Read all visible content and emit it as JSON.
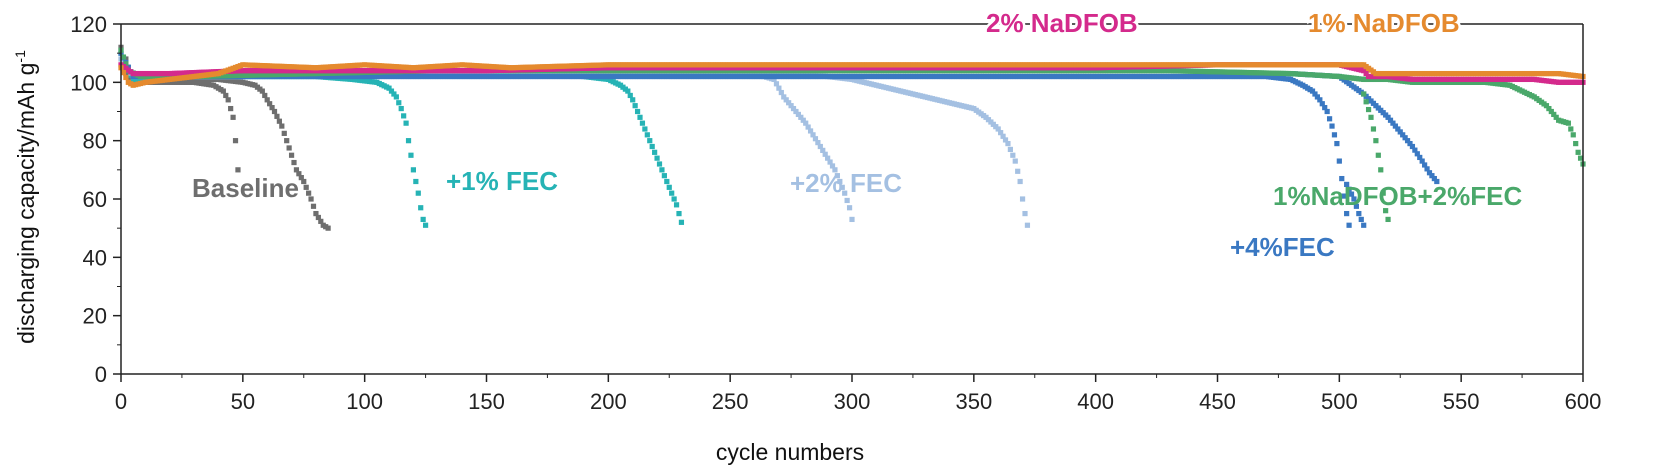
{
  "chart_data": {
    "type": "scatter",
    "title": "",
    "xlabel": "cycle numbers",
    "ylabel_main": "discharging capacity/mAh g",
    "ylabel_sup": "-1",
    "xlim": [
      0,
      600
    ],
    "ylim": [
      0,
      120
    ],
    "xticks": [
      0,
      50,
      100,
      150,
      200,
      250,
      300,
      350,
      400,
      450,
      500,
      550,
      600
    ],
    "yticks": [
      0,
      20,
      40,
      60,
      80,
      100,
      120
    ],
    "grid": false,
    "legend": "inline labels",
    "series": [
      {
        "name": "Baseline",
        "color": "#6e6e6e",
        "points": [
          [
            0,
            112
          ],
          [
            1,
            106
          ],
          [
            2,
            103
          ],
          [
            4,
            101
          ],
          [
            6,
            100
          ],
          [
            10,
            100
          ],
          [
            20,
            100
          ],
          [
            30,
            100
          ],
          [
            38,
            99
          ],
          [
            42,
            97
          ],
          [
            44,
            94
          ],
          [
            46,
            88
          ],
          [
            47,
            80
          ],
          [
            48,
            70
          ],
          [
            2,
            108
          ],
          [
            4,
            102
          ],
          [
            10,
            101
          ],
          [
            20,
            101
          ],
          [
            30,
            101
          ],
          [
            40,
            101
          ],
          [
            50,
            100
          ],
          [
            55,
            99
          ],
          [
            58,
            97
          ],
          [
            60,
            94
          ],
          [
            63,
            90
          ],
          [
            66,
            85
          ],
          [
            68,
            80
          ],
          [
            70,
            75
          ],
          [
            72,
            70
          ],
          [
            75,
            66
          ],
          [
            78,
            60
          ],
          [
            80,
            55
          ],
          [
            83,
            51
          ],
          [
            85,
            50
          ]
        ]
      },
      {
        "name": "+1% FEC",
        "color": "#26b3b5",
        "points": [
          [
            0,
            110
          ],
          [
            3,
            104
          ],
          [
            5,
            101
          ],
          [
            10,
            101
          ],
          [
            20,
            102
          ],
          [
            40,
            102
          ],
          [
            60,
            102
          ],
          [
            80,
            102
          ],
          [
            95,
            101
          ],
          [
            105,
            100
          ],
          [
            110,
            98
          ],
          [
            113,
            95
          ],
          [
            115,
            91
          ],
          [
            117,
            86
          ],
          [
            118,
            80
          ],
          [
            119,
            75
          ],
          [
            120,
            70
          ],
          [
            121,
            66
          ],
          [
            122,
            62
          ],
          [
            123,
            57
          ],
          [
            124,
            53
          ],
          [
            125,
            51
          ],
          [
            5,
            102
          ],
          [
            30,
            102
          ],
          [
            60,
            103
          ],
          [
            100,
            103
          ],
          [
            140,
            103
          ],
          [
            170,
            103
          ],
          [
            190,
            102
          ],
          [
            200,
            101
          ],
          [
            205,
            99
          ],
          [
            208,
            97
          ],
          [
            210,
            94
          ],
          [
            212,
            90
          ],
          [
            214,
            86
          ],
          [
            216,
            82
          ],
          [
            218,
            78
          ],
          [
            220,
            74
          ],
          [
            222,
            70
          ],
          [
            224,
            66
          ],
          [
            226,
            62
          ],
          [
            228,
            58
          ],
          [
            229,
            55
          ],
          [
            230,
            52
          ]
        ]
      },
      {
        "name": "+2% FEC",
        "color": "#a4c0e2",
        "points": [
          [
            0,
            108
          ],
          [
            5,
            102
          ],
          [
            20,
            102
          ],
          [
            50,
            102
          ],
          [
            100,
            103
          ],
          [
            150,
            103
          ],
          [
            200,
            103
          ],
          [
            240,
            103
          ],
          [
            260,
            103
          ],
          [
            268,
            101
          ],
          [
            270,
            98
          ],
          [
            272,
            95
          ],
          [
            275,
            92
          ],
          [
            278,
            89
          ],
          [
            281,
            86
          ],
          [
            284,
            82
          ],
          [
            287,
            78
          ],
          [
            290,
            74
          ],
          [
            293,
            70
          ],
          [
            295,
            66
          ],
          [
            297,
            62
          ],
          [
            299,
            57
          ],
          [
            300,
            53
          ],
          [
            10,
            102
          ],
          [
            50,
            102
          ],
          [
            100,
            103
          ],
          [
            150,
            103
          ],
          [
            200,
            103
          ],
          [
            250,
            103
          ],
          [
            270,
            103
          ],
          [
            290,
            102
          ],
          [
            300,
            101
          ],
          [
            310,
            99
          ],
          [
            320,
            97
          ],
          [
            330,
            95
          ],
          [
            340,
            93
          ],
          [
            350,
            91
          ],
          [
            355,
            88
          ],
          [
            360,
            84
          ],
          [
            364,
            79
          ],
          [
            367,
            73
          ],
          [
            369,
            66
          ],
          [
            370,
            60
          ],
          [
            371,
            55
          ],
          [
            372,
            51
          ]
        ]
      },
      {
        "name": "+4%FEC",
        "color": "#3a78c2",
        "points": [
          [
            0,
            110
          ],
          [
            5,
            102
          ],
          [
            20,
            102
          ],
          [
            50,
            102
          ],
          [
            100,
            102
          ],
          [
            150,
            102
          ],
          [
            200,
            102
          ],
          [
            250,
            102
          ],
          [
            300,
            102
          ],
          [
            350,
            102
          ],
          [
            400,
            102
          ],
          [
            450,
            102
          ],
          [
            470,
            102
          ],
          [
            480,
            101
          ],
          [
            485,
            99
          ],
          [
            489,
            97
          ],
          [
            492,
            94
          ],
          [
            495,
            90
          ],
          [
            497,
            85
          ],
          [
            499,
            79
          ],
          [
            500,
            73
          ],
          [
            501,
            67
          ],
          [
            502,
            61
          ],
          [
            503,
            55
          ],
          [
            504,
            51
          ],
          [
            480,
            103
          ],
          [
            500,
            102
          ],
          [
            505,
            99
          ],
          [
            510,
            96
          ],
          [
            515,
            92
          ],
          [
            520,
            88
          ],
          [
            525,
            83
          ],
          [
            530,
            78
          ],
          [
            534,
            73
          ],
          [
            537,
            69
          ],
          [
            540,
            66
          ],
          [
            503,
            65
          ],
          [
            506,
            60
          ],
          [
            508,
            55
          ],
          [
            510,
            51
          ]
        ]
      },
      {
        "name": "1%NaDFOB+2%FEC",
        "color": "#4aa86a",
        "points": [
          [
            0,
            111
          ],
          [
            3,
            104
          ],
          [
            8,
            102
          ],
          [
            30,
            102
          ],
          [
            80,
            103
          ],
          [
            130,
            104
          ],
          [
            180,
            104
          ],
          [
            230,
            104
          ],
          [
            280,
            104
          ],
          [
            330,
            104
          ],
          [
            380,
            104
          ],
          [
            430,
            104
          ],
          [
            480,
            103
          ],
          [
            500,
            102
          ],
          [
            510,
            101
          ],
          [
            520,
            101
          ],
          [
            530,
            100
          ],
          [
            540,
            100
          ],
          [
            550,
            100
          ],
          [
            560,
            100
          ],
          [
            570,
            99
          ],
          [
            575,
            97
          ],
          [
            580,
            95
          ],
          [
            585,
            92
          ],
          [
            588,
            89
          ],
          [
            590,
            87
          ],
          [
            594,
            86
          ],
          [
            596,
            82
          ],
          [
            598,
            76
          ],
          [
            600,
            72
          ],
          [
            510,
            96
          ],
          [
            513,
            88
          ],
          [
            515,
            80
          ],
          [
            517,
            70
          ],
          [
            518,
            62
          ],
          [
            519,
            56
          ],
          [
            520,
            53
          ]
        ]
      },
      {
        "name": "2% NaDFOB",
        "color": "#d42a8c",
        "points": [
          [
            0,
            106
          ],
          [
            5,
            103
          ],
          [
            20,
            103
          ],
          [
            50,
            104
          ],
          [
            100,
            104
          ],
          [
            150,
            104
          ],
          [
            200,
            105
          ],
          [
            250,
            105
          ],
          [
            300,
            105
          ],
          [
            350,
            105
          ],
          [
            400,
            105
          ],
          [
            450,
            106
          ],
          [
            480,
            106
          ],
          [
            500,
            106
          ],
          [
            510,
            104
          ],
          [
            512,
            102
          ],
          [
            520,
            102
          ],
          [
            530,
            101
          ],
          [
            540,
            101
          ],
          [
            550,
            101
          ],
          [
            560,
            101
          ],
          [
            570,
            101
          ],
          [
            580,
            101
          ],
          [
            590,
            100
          ],
          [
            600,
            100
          ]
        ]
      },
      {
        "name": "1% NaDFOB",
        "color": "#e58a2e",
        "points": [
          [
            0,
            105
          ],
          [
            3,
            100
          ],
          [
            5,
            99
          ],
          [
            10,
            100
          ],
          [
            20,
            101
          ],
          [
            40,
            103
          ],
          [
            50,
            106
          ],
          [
            80,
            105
          ],
          [
            100,
            106
          ],
          [
            120,
            105
          ],
          [
            140,
            106
          ],
          [
            160,
            105
          ],
          [
            200,
            106
          ],
          [
            250,
            106
          ],
          [
            300,
            106
          ],
          [
            350,
            106
          ],
          [
            400,
            106
          ],
          [
            450,
            106
          ],
          [
            500,
            106
          ],
          [
            510,
            106
          ],
          [
            515,
            103
          ],
          [
            530,
            103
          ],
          [
            550,
            103
          ],
          [
            570,
            103
          ],
          [
            590,
            103
          ],
          [
            600,
            102
          ]
        ]
      }
    ],
    "label_texts": {
      "baseline": "Baseline",
      "fec1": "+1% FEC",
      "fec2": "+2% FEC",
      "fec4": "+4%FEC",
      "combo": "1%NaDFOB+2%FEC",
      "nadfob2": "2% NaDFOB",
      "nadfob1": "1% NaDFOB"
    }
  }
}
